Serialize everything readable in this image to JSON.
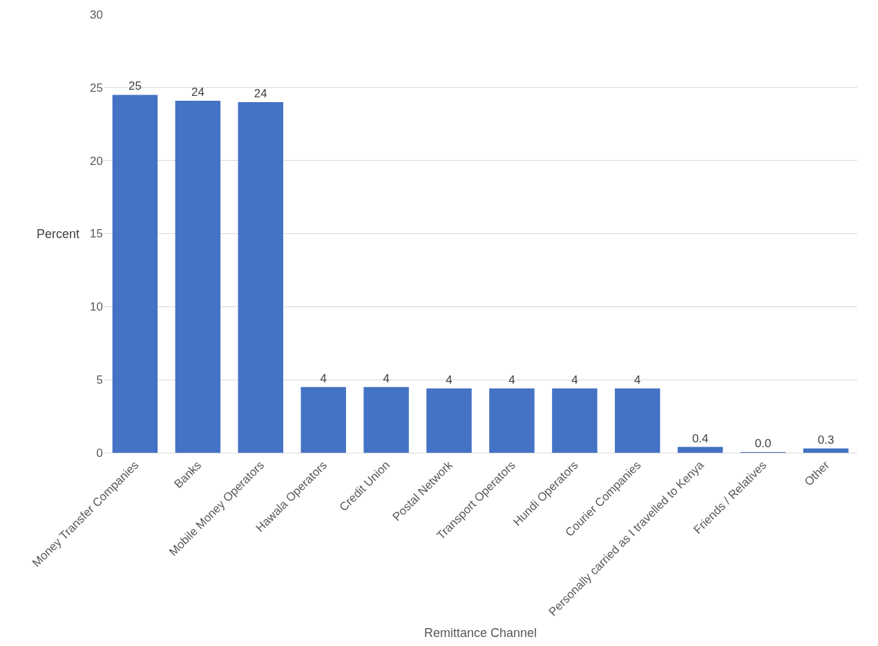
{
  "chart_data": {
    "type": "bar",
    "categories": [
      "Money Transfer Companies",
      "Banks",
      "Mobile Money Operators",
      "Hawala Operators",
      "Credit Union",
      "Postal Network",
      "Transport Operators",
      "Hundi Operators",
      "Courier Companies",
      "Personally carried as I travelled to Kenya",
      "Friends / Relatives",
      "Other"
    ],
    "values": [
      24.5,
      24.1,
      24.0,
      4.5,
      4.5,
      4.4,
      4.4,
      4.4,
      4.4,
      0.4,
      0.04,
      0.3
    ],
    "value_labels": [
      "25",
      "24",
      "24",
      "4",
      "4",
      "4",
      "4",
      "4",
      "4",
      "0.4",
      "0.0",
      "0.3"
    ],
    "color": "#4472c4",
    "xlabel": "Remittance Channel",
    "ylabel": "Percent",
    "ylim": [
      0,
      30
    ],
    "yticks": [
      0,
      5,
      10,
      15,
      20,
      25,
      30
    ],
    "grid": "y"
  }
}
